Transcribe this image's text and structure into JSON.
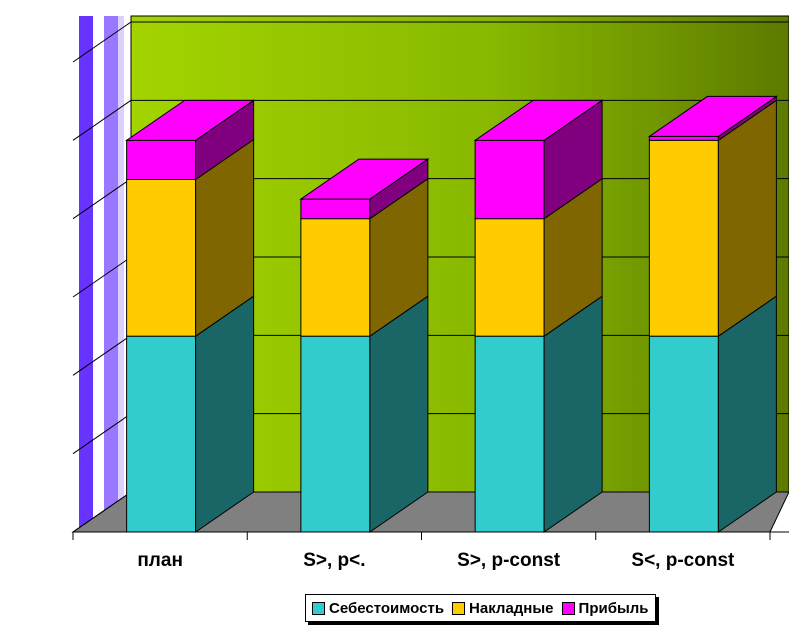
{
  "chart_data": {
    "type": "bar",
    "stacked": true,
    "three_d": true,
    "categories": [
      "план",
      "S>, p<.",
      "S>, p-const",
      "S<, p-const"
    ],
    "series": [
      {
        "name": "Себестоимость",
        "values": [
          5.0,
          5.0,
          5.0,
          5.0
        ],
        "color": "#33CCCC",
        "side_color": "#1A6666"
      },
      {
        "name": "Накладные",
        "values": [
          4.0,
          3.0,
          3.0,
          5.0
        ],
        "color": "#FFCC00",
        "side_color": "#806600"
      },
      {
        "name": "Прибыль",
        "values": [
          1.0,
          0.5,
          2.0,
          0.1
        ],
        "color": "#FF00FF",
        "side_color": "#800080"
      }
    ],
    "ylim": [
      0,
      12
    ],
    "grid": true,
    "legend": "bottom",
    "wall_color": "#99CC00",
    "floor_color": "#808080"
  }
}
